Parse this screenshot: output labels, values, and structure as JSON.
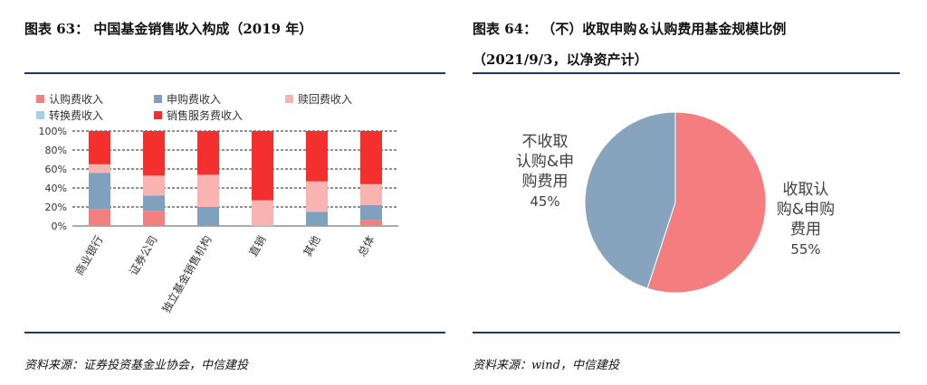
{
  "left": {
    "title": "图表 63：  中国基金销售收入构成（2019 年）",
    "source": "资料来源：证券投资基金业协会，中信建投"
  },
  "right": {
    "title_line1": "图表 64：  （不）收取申购＆认购费用基金规模比例",
    "title_line2": "（2021/9/3，以净资产计）",
    "source": "资料来源：wind，中信建投"
  },
  "chart_data": [
    {
      "type": "bar",
      "stacked": true,
      "categories": [
        "商业银行",
        "证券公司",
        "独立基金销售机构",
        "直销",
        "其他",
        "总体"
      ],
      "series": [
        {
          "name": "认购费收入",
          "color": "#f47f7f",
          "values": [
            18,
            16,
            0,
            0,
            0,
            6
          ]
        },
        {
          "name": "申购费收入",
          "color": "#7fa1bd",
          "values": [
            38,
            16,
            20,
            0,
            15,
            16
          ]
        },
        {
          "name": "赎回费收入",
          "color": "#f9b3b0",
          "values": [
            9,
            21,
            34,
            27,
            32,
            22
          ]
        },
        {
          "name": "转换费收入",
          "color": "#a9cde3",
          "values": [
            0,
            0,
            0,
            0,
            0,
            0
          ]
        },
        {
          "name": "销售服务费收入",
          "color": "#f4302f",
          "values": [
            35,
            47,
            46,
            73,
            53,
            56
          ]
        }
      ],
      "ylim": [
        0,
        100
      ],
      "yticks": [
        "0%",
        "20%",
        "40%",
        "60%",
        "80%",
        "100%"
      ],
      "grid": true,
      "legend_position": "top"
    },
    {
      "type": "pie",
      "slices": [
        {
          "label_lines": [
            "收取认",
            "购&申购",
            "费用"
          ],
          "value_label": "55%",
          "value": 55,
          "color": "#f47d7f"
        },
        {
          "label_lines": [
            "不收取",
            "认购&申",
            "购费用"
          ],
          "value_label": "45%",
          "value": 45,
          "color": "#87a4bf"
        }
      ]
    }
  ]
}
